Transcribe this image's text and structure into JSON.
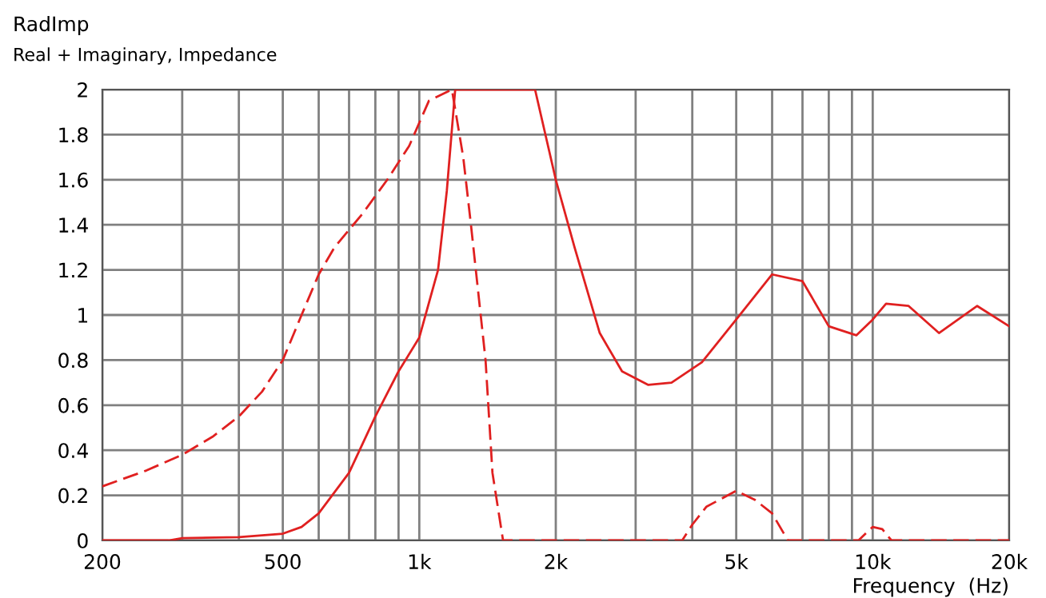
{
  "chart_data": {
    "type": "line",
    "title": "RadImp",
    "subtitle": "Real + Imaginary, Impedance",
    "xlabel": "Frequency  (Hz)",
    "series": [
      {
        "color": "#e02020",
        "line_style": "solid",
        "x": [
          200,
          280,
          300,
          400,
          500,
          550,
          600,
          700,
          800,
          900,
          1000,
          1100,
          1150,
          1200,
          1800,
          2000,
          2200,
          2500,
          2800,
          3200,
          3600,
          4200,
          5000,
          6000,
          7000,
          8000,
          9200,
          10000,
          10700,
          12000,
          14000,
          17000,
          20000
        ],
        "values": [
          0,
          0,
          0.01,
          0.015,
          0.03,
          0.06,
          0.12,
          0.3,
          0.55,
          0.75,
          0.9,
          1.2,
          1.55,
          2,
          2,
          1.6,
          1.3,
          0.92,
          0.75,
          0.69,
          0.7,
          0.79,
          0.98,
          1.18,
          1.15,
          0.95,
          0.91,
          0.98,
          1.05,
          1.04,
          0.92,
          1.04,
          0.95
        ]
      },
      {
        "color": "#e02020",
        "line_style": "dashed",
        "x": [
          200,
          250,
          300,
          350,
          400,
          450,
          500,
          550,
          600,
          650,
          750,
          850,
          950,
          1050,
          1180,
          1250,
          1300,
          1400,
          1450,
          1530,
          3800,
          4000,
          4300,
          5000,
          5500,
          6000,
          6500,
          9300,
          10000,
          10500,
          11000,
          20000
        ],
        "values": [
          0.24,
          0.31,
          0.38,
          0.46,
          0.55,
          0.66,
          0.8,
          1.0,
          1.18,
          1.3,
          1.45,
          1.6,
          1.75,
          1.95,
          2,
          1.7,
          1.4,
          0.8,
          0.3,
          0,
          0,
          0.07,
          0.15,
          0.22,
          0.18,
          0.12,
          0,
          0,
          0.06,
          0.05,
          0,
          0
        ]
      }
    ],
    "log": "x",
    "xlim": [
      200,
      20000
    ],
    "ylim": [
      0,
      2
    ],
    "xticks": [
      200,
      {
        "value": 300,
        "label": null
      },
      {
        "value": 400,
        "label": null
      },
      500,
      {
        "value": 600,
        "label": null
      },
      {
        "value": 700,
        "label": null
      },
      {
        "value": 800,
        "label": null
      },
      {
        "value": 900,
        "label": null
      },
      {
        "value": 1000,
        "label": "1k"
      },
      {
        "value": 2000,
        "label": "2k"
      },
      {
        "value": 3000,
        "label": null
      },
      {
        "value": 4000,
        "label": null
      },
      {
        "value": 5000,
        "label": "5k"
      },
      {
        "value": 6000,
        "label": null
      },
      {
        "value": 7000,
        "label": null
      },
      {
        "value": 8000,
        "label": null
      },
      {
        "value": 9000,
        "label": null
      },
      {
        "value": 10000,
        "label": "10k"
      },
      {
        "value": 20000,
        "label": "20k"
      }
    ],
    "yticks": [
      0,
      0.2,
      0.4,
      0.6,
      0.8,
      1,
      1.2,
      1.4,
      1.6,
      1.8,
      2
    ],
    "grid": true,
    "legend": false
  }
}
